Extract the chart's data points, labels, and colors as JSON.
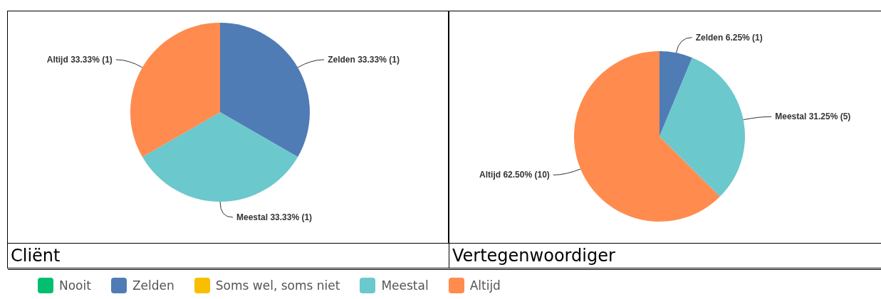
{
  "chart_data": [
    {
      "type": "pie",
      "title": "Cliënt",
      "categories": [
        "Nooit",
        "Zelden",
        "Soms wel, soms niet",
        "Meestal",
        "Altijd"
      ],
      "values": [
        0,
        33.33,
        0,
        33.33,
        33.33
      ],
      "colors": [
        "#00bf6f",
        "#507cb6",
        "#f9be00",
        "#6bc8cd",
        "#ff8b4f"
      ],
      "value_labels": [
        null,
        "33.33% (1)",
        null,
        "33.33% (1)",
        "33.33% (1)"
      ],
      "legend": "bottom"
    },
    {
      "type": "pie",
      "title": "Vertegenwoordiger",
      "categories": [
        "Zelden",
        "Meestal",
        "Altijd"
      ],
      "values": [
        6.25,
        31.25,
        62.5
      ],
      "colors": [
        "#507cb6",
        "#6bc8cd",
        "#ff8b4f"
      ],
      "value_labels": [
        "6.25% (1)",
        "31.25% (5)",
        "62.50% (10)"
      ]
    }
  ]
}
